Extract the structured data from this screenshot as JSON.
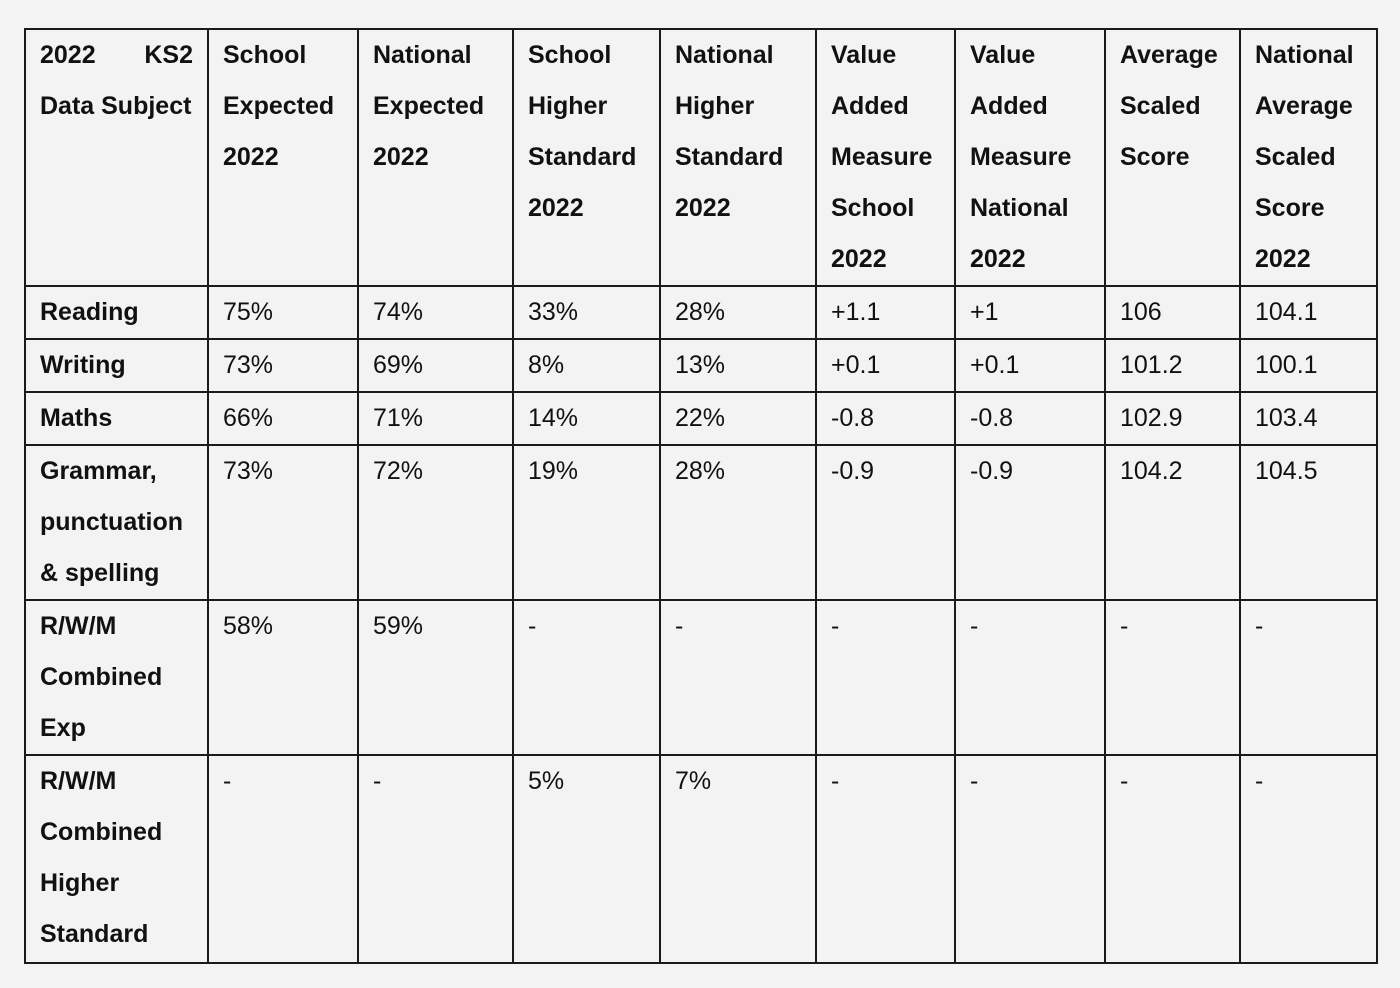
{
  "table": {
    "headers": {
      "subject_line1_a": "2022",
      "subject_line1_b": "KS2",
      "subject_rest": "Data Subject",
      "school_expected": "School Expected 2022",
      "national_expected": "National Expected 2022",
      "school_higher": "School Higher Standard 2022",
      "national_higher": "National Higher Standard 2022",
      "va_school": "Value Added Measure School 2022",
      "va_national": "Value Added Measure National 2022",
      "avg_scaled": "Average Scaled Score",
      "nat_avg_scaled": "National Average Scaled Score 2022"
    },
    "rows": [
      {
        "subject": "Reading",
        "cells": [
          "75%",
          "74%",
          "33%",
          "28%",
          "+1.1",
          "+1",
          "106",
          "104.1"
        ]
      },
      {
        "subject": "Writing",
        "cells": [
          "73%",
          "69%",
          "8%",
          "13%",
          "+0.1",
          "+0.1",
          "101.2",
          "100.1"
        ]
      },
      {
        "subject": "Maths",
        "cells": [
          "66%",
          "71%",
          "14%",
          "22%",
          "-0.8",
          "-0.8",
          "102.9",
          "103.4"
        ]
      },
      {
        "subject": "Grammar, punctuation & spelling",
        "cells": [
          "73%",
          "72%",
          "19%",
          "28%",
          "-0.9",
          "-0.9",
          "104.2",
          "104.5"
        ]
      },
      {
        "subject": "R/W/M Combined Exp",
        "cells": [
          "58%",
          "59%",
          "-",
          "-",
          "-",
          "-",
          "-",
          "-"
        ]
      },
      {
        "subject": "R/W/M Combined Higher Standard",
        "cells": [
          "-",
          "-",
          "5%",
          "7%",
          "-",
          "-",
          "-",
          "-"
        ]
      }
    ]
  }
}
